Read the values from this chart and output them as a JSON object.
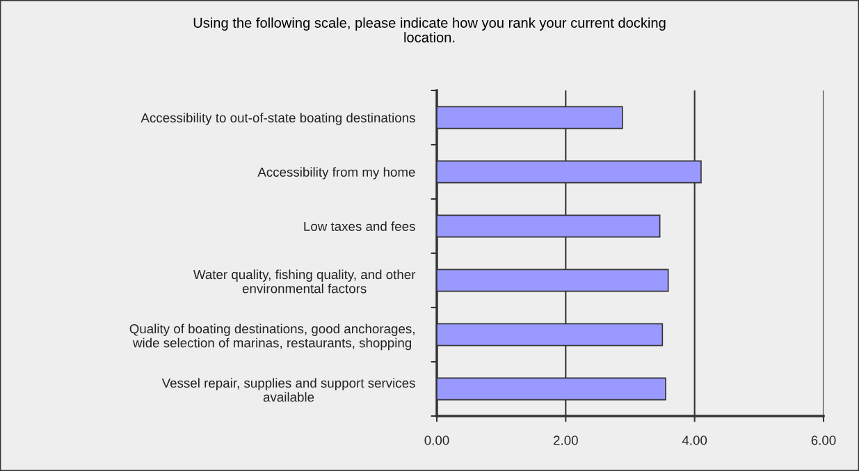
{
  "chart_data": {
    "type": "bar",
    "orientation": "horizontal",
    "title": "Using the following scale, please indicate how you rank your current docking\nlocation.",
    "categories": [
      "Accessibility to out-of-state boating destinations",
      "Accessibility from my home",
      "Low taxes and fees",
      "Water quality, fishing quality, and other\nenvironmental factors",
      "Quality of boating destinations, good anchorages,\nwide selection of marinas, restaurants, shopping",
      "Vessel repair, supplies and support services\navailable"
    ],
    "values": [
      2.88,
      4.1,
      3.46,
      3.59,
      3.5,
      3.55
    ],
    "color": "#9999ff",
    "xlim": [
      0,
      6
    ],
    "xticks": [
      {
        "value": 0,
        "label": "0.00"
      },
      {
        "value": 2,
        "label": "2.00"
      },
      {
        "value": 4,
        "label": "4.00"
      },
      {
        "value": 6,
        "label": "6.00"
      }
    ],
    "grid": "x",
    "legend": false
  }
}
